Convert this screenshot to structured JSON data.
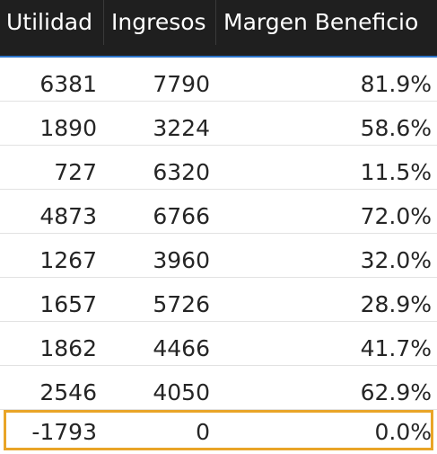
{
  "table": {
    "columns": [
      "Utilidad",
      "Ingresos",
      "Margen Beneficio"
    ],
    "rows": [
      [
        "6381",
        "7790",
        "81.9%"
      ],
      [
        "1890",
        "3224",
        "58.6%"
      ],
      [
        "727",
        "6320",
        "11.5%"
      ],
      [
        "4873",
        "6766",
        "72.0%"
      ],
      [
        "1267",
        "3960",
        "32.0%"
      ],
      [
        "1657",
        "5726",
        "28.9%"
      ],
      [
        "1862",
        "4466",
        "41.7%"
      ],
      [
        "2546",
        "4050",
        "62.9%"
      ],
      [
        "-1793",
        "0",
        "0.0%"
      ]
    ],
    "highlighted_row_index": 8
  },
  "colors": {
    "header_background": "#1f1f1f",
    "header_text": "#ffffff",
    "header_underline": "#2b73c9",
    "highlight_border": "#e9a527",
    "row_divider": "#e2e2e2"
  }
}
